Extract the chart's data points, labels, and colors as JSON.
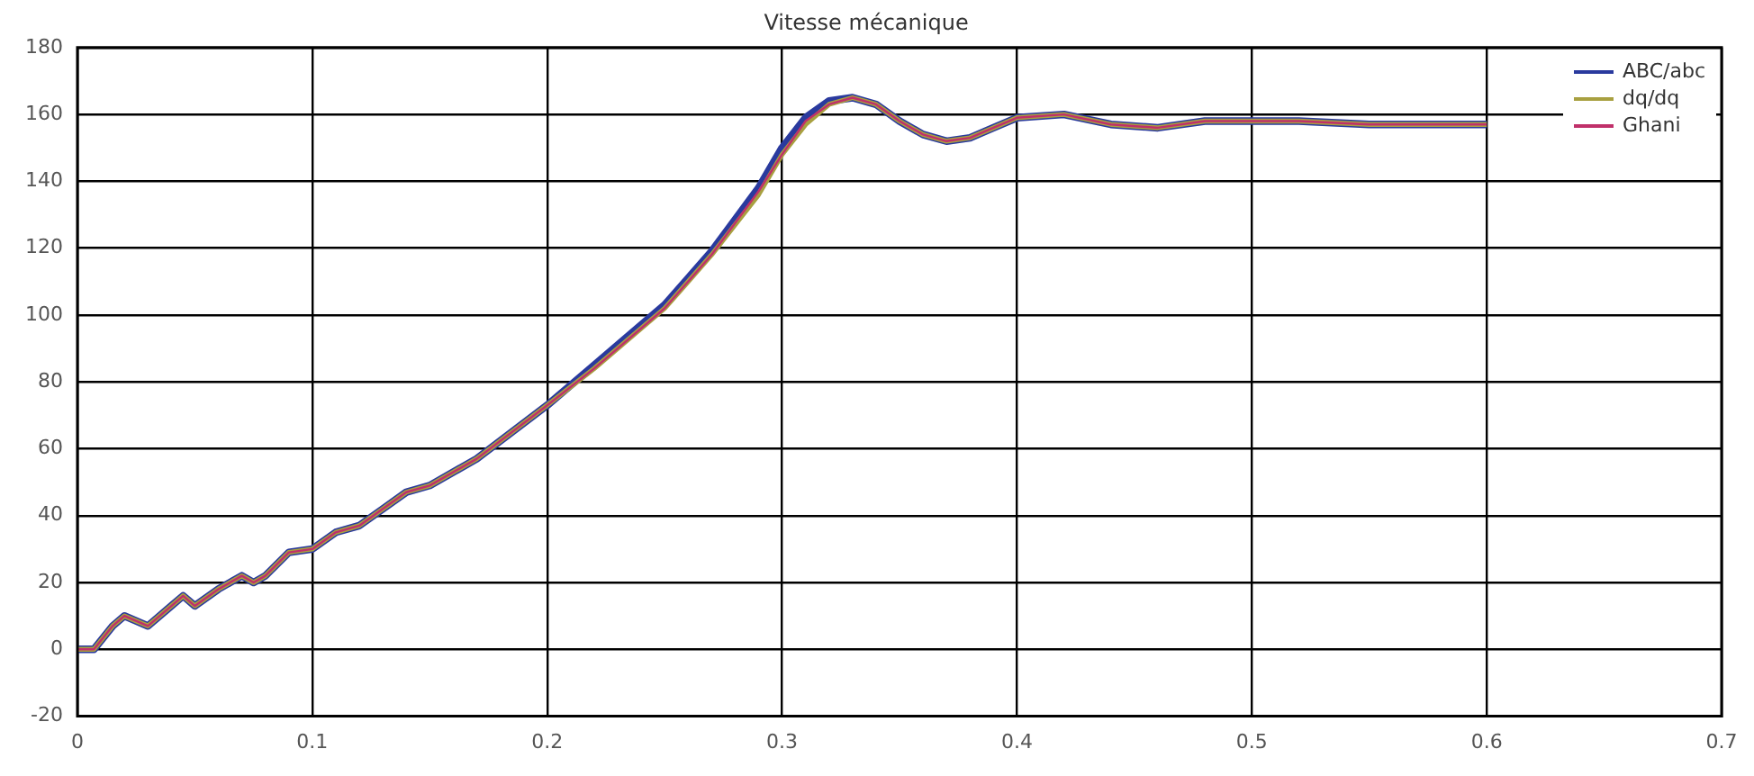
{
  "chart_data": {
    "type": "line",
    "title": "Vitesse mécanique",
    "x": [
      0,
      0.007,
      0.015,
      0.02,
      0.03,
      0.04,
      0.045,
      0.05,
      0.06,
      0.07,
      0.075,
      0.08,
      0.09,
      0.1,
      0.11,
      0.12,
      0.13,
      0.14,
      0.15,
      0.17,
      0.2,
      0.22,
      0.25,
      0.27,
      0.29,
      0.3,
      0.31,
      0.32,
      0.33,
      0.34,
      0.35,
      0.36,
      0.37,
      0.38,
      0.39,
      0.4,
      0.42,
      0.44,
      0.46,
      0.48,
      0.5,
      0.52,
      0.55,
      0.6
    ],
    "series": [
      {
        "name": "ABC/abc",
        "color": "#2a3a9e",
        "values": [
          0,
          0,
          7,
          10,
          7,
          13,
          16,
          13,
          18,
          22,
          20,
          22,
          29,
          30,
          35,
          37,
          42,
          47,
          49,
          57,
          73,
          85,
          103,
          119,
          138,
          150,
          159,
          164,
          165,
          163,
          158,
          154,
          152,
          153,
          156,
          159,
          160,
          157,
          156,
          158,
          158,
          158,
          157,
          157
        ]
      },
      {
        "name": "dq/dq",
        "color": "#a8a040",
        "values": [
          0,
          0,
          7,
          10,
          7,
          13,
          16,
          13,
          18,
          22,
          20,
          22,
          29,
          30,
          35,
          37,
          42,
          47,
          49,
          57,
          73,
          84,
          102,
          118,
          136,
          148,
          157,
          163,
          165,
          163,
          158,
          154,
          152,
          153,
          156,
          159,
          160,
          157,
          156,
          158,
          158,
          158,
          157,
          157
        ]
      },
      {
        "name": "Ghani",
        "color": "#c0306a",
        "values": [
          0,
          0,
          7,
          10,
          7,
          13,
          16,
          13,
          18,
          22,
          20,
          22,
          29,
          30,
          35,
          37,
          42,
          47,
          49,
          57,
          73,
          84,
          102,
          118,
          137,
          148,
          158,
          163,
          165,
          163,
          158,
          154,
          152,
          153,
          156,
          159,
          160,
          157,
          156,
          158,
          158,
          158,
          157,
          157
        ]
      }
    ],
    "xlim": [
      0,
      0.7
    ],
    "xticks": [
      0,
      0.1,
      0.2,
      0.3,
      0.4,
      0.5,
      0.6,
      0.7
    ],
    "ylim": [
      -20,
      180
    ],
    "yticks": [
      -20,
      0,
      20,
      40,
      60,
      80,
      100,
      120,
      140,
      160,
      180
    ],
    "grid": true,
    "legend": "top right",
    "line_style": "solid",
    "marker": "none"
  }
}
